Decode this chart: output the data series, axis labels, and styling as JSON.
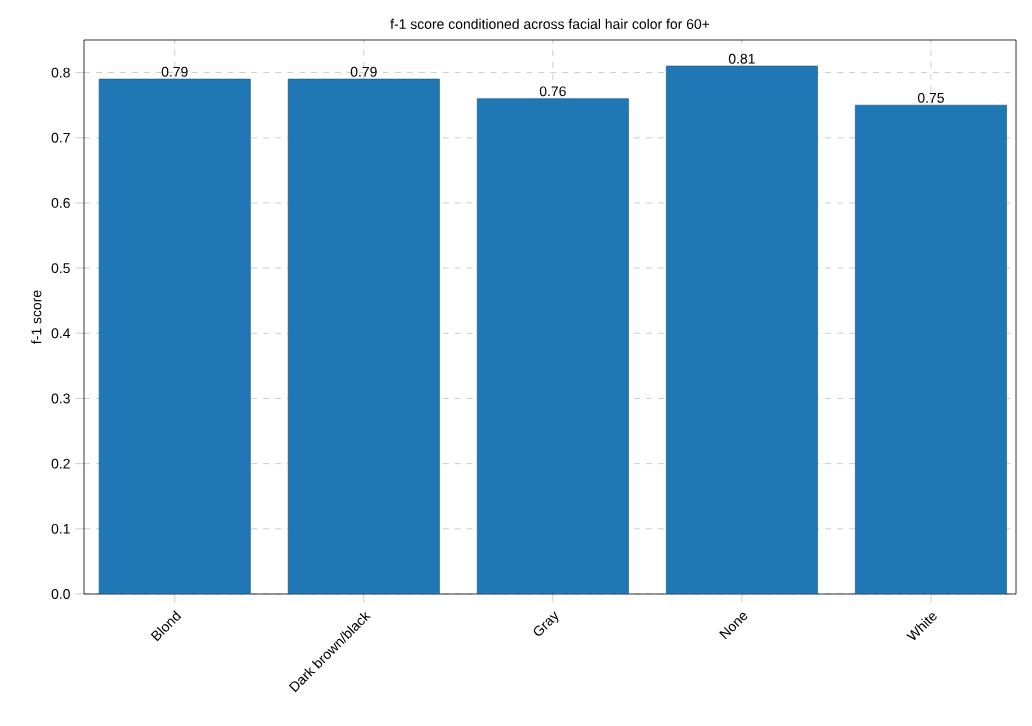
{
  "chart_data": {
    "type": "bar",
    "title": "f-1 score conditioned across facial hair color for 60+",
    "ylabel": "f-1 score",
    "categories": [
      "Blond",
      "Dark brown/black",
      "Gray",
      "None",
      "White"
    ],
    "values": [
      0.79,
      0.79,
      0.76,
      0.81,
      0.75
    ],
    "color": "#1f77b4",
    "data_labels": true,
    "ylim": [
      0,
      0.85
    ],
    "yticks": [
      {
        "value": 0,
        "label": "0.0"
      },
      0.1,
      0.2,
      0.3,
      0.4,
      0.5,
      0.6,
      0.7,
      0.8
    ],
    "grid": true
  }
}
